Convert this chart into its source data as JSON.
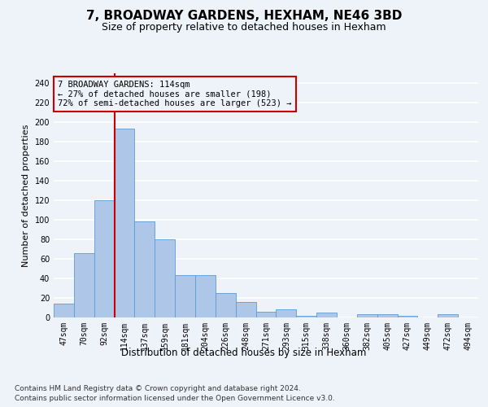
{
  "title": "7, BROADWAY GARDENS, HEXHAM, NE46 3BD",
  "subtitle": "Size of property relative to detached houses in Hexham",
  "xlabel": "Distribution of detached houses by size in Hexham",
  "ylabel": "Number of detached properties",
  "categories": [
    "47sqm",
    "70sqm",
    "92sqm",
    "114sqm",
    "137sqm",
    "159sqm",
    "181sqm",
    "204sqm",
    "226sqm",
    "248sqm",
    "271sqm",
    "293sqm",
    "315sqm",
    "338sqm",
    "360sqm",
    "382sqm",
    "405sqm",
    "427sqm",
    "449sqm",
    "472sqm",
    "494sqm"
  ],
  "values": [
    14,
    66,
    120,
    193,
    98,
    80,
    43,
    43,
    25,
    16,
    6,
    8,
    2,
    5,
    0,
    3,
    3,
    2,
    0,
    3,
    0
  ],
  "bar_color": "#aec6e8",
  "bar_edge_color": "#5b9bd5",
  "vline_index": 3,
  "vline_color": "#cc0000",
  "ylim": [
    0,
    250
  ],
  "yticks": [
    0,
    20,
    40,
    60,
    80,
    100,
    120,
    140,
    160,
    180,
    200,
    220,
    240
  ],
  "annotation_text": "7 BROADWAY GARDENS: 114sqm\n← 27% of detached houses are smaller (198)\n72% of semi-detached houses are larger (523) →",
  "annotation_box_edge": "#cc0000",
  "footnote_line1": "Contains HM Land Registry data © Crown copyright and database right 2024.",
  "footnote_line2": "Contains public sector information licensed under the Open Government Licence v3.0.",
  "background_color": "#eef2f9",
  "grid_color": "#ffffff",
  "title_fontsize": 11,
  "subtitle_fontsize": 9,
  "xlabel_fontsize": 8.5,
  "ylabel_fontsize": 8,
  "tick_fontsize": 7,
  "annotation_fontsize": 7.5,
  "footnote_fontsize": 6.5
}
